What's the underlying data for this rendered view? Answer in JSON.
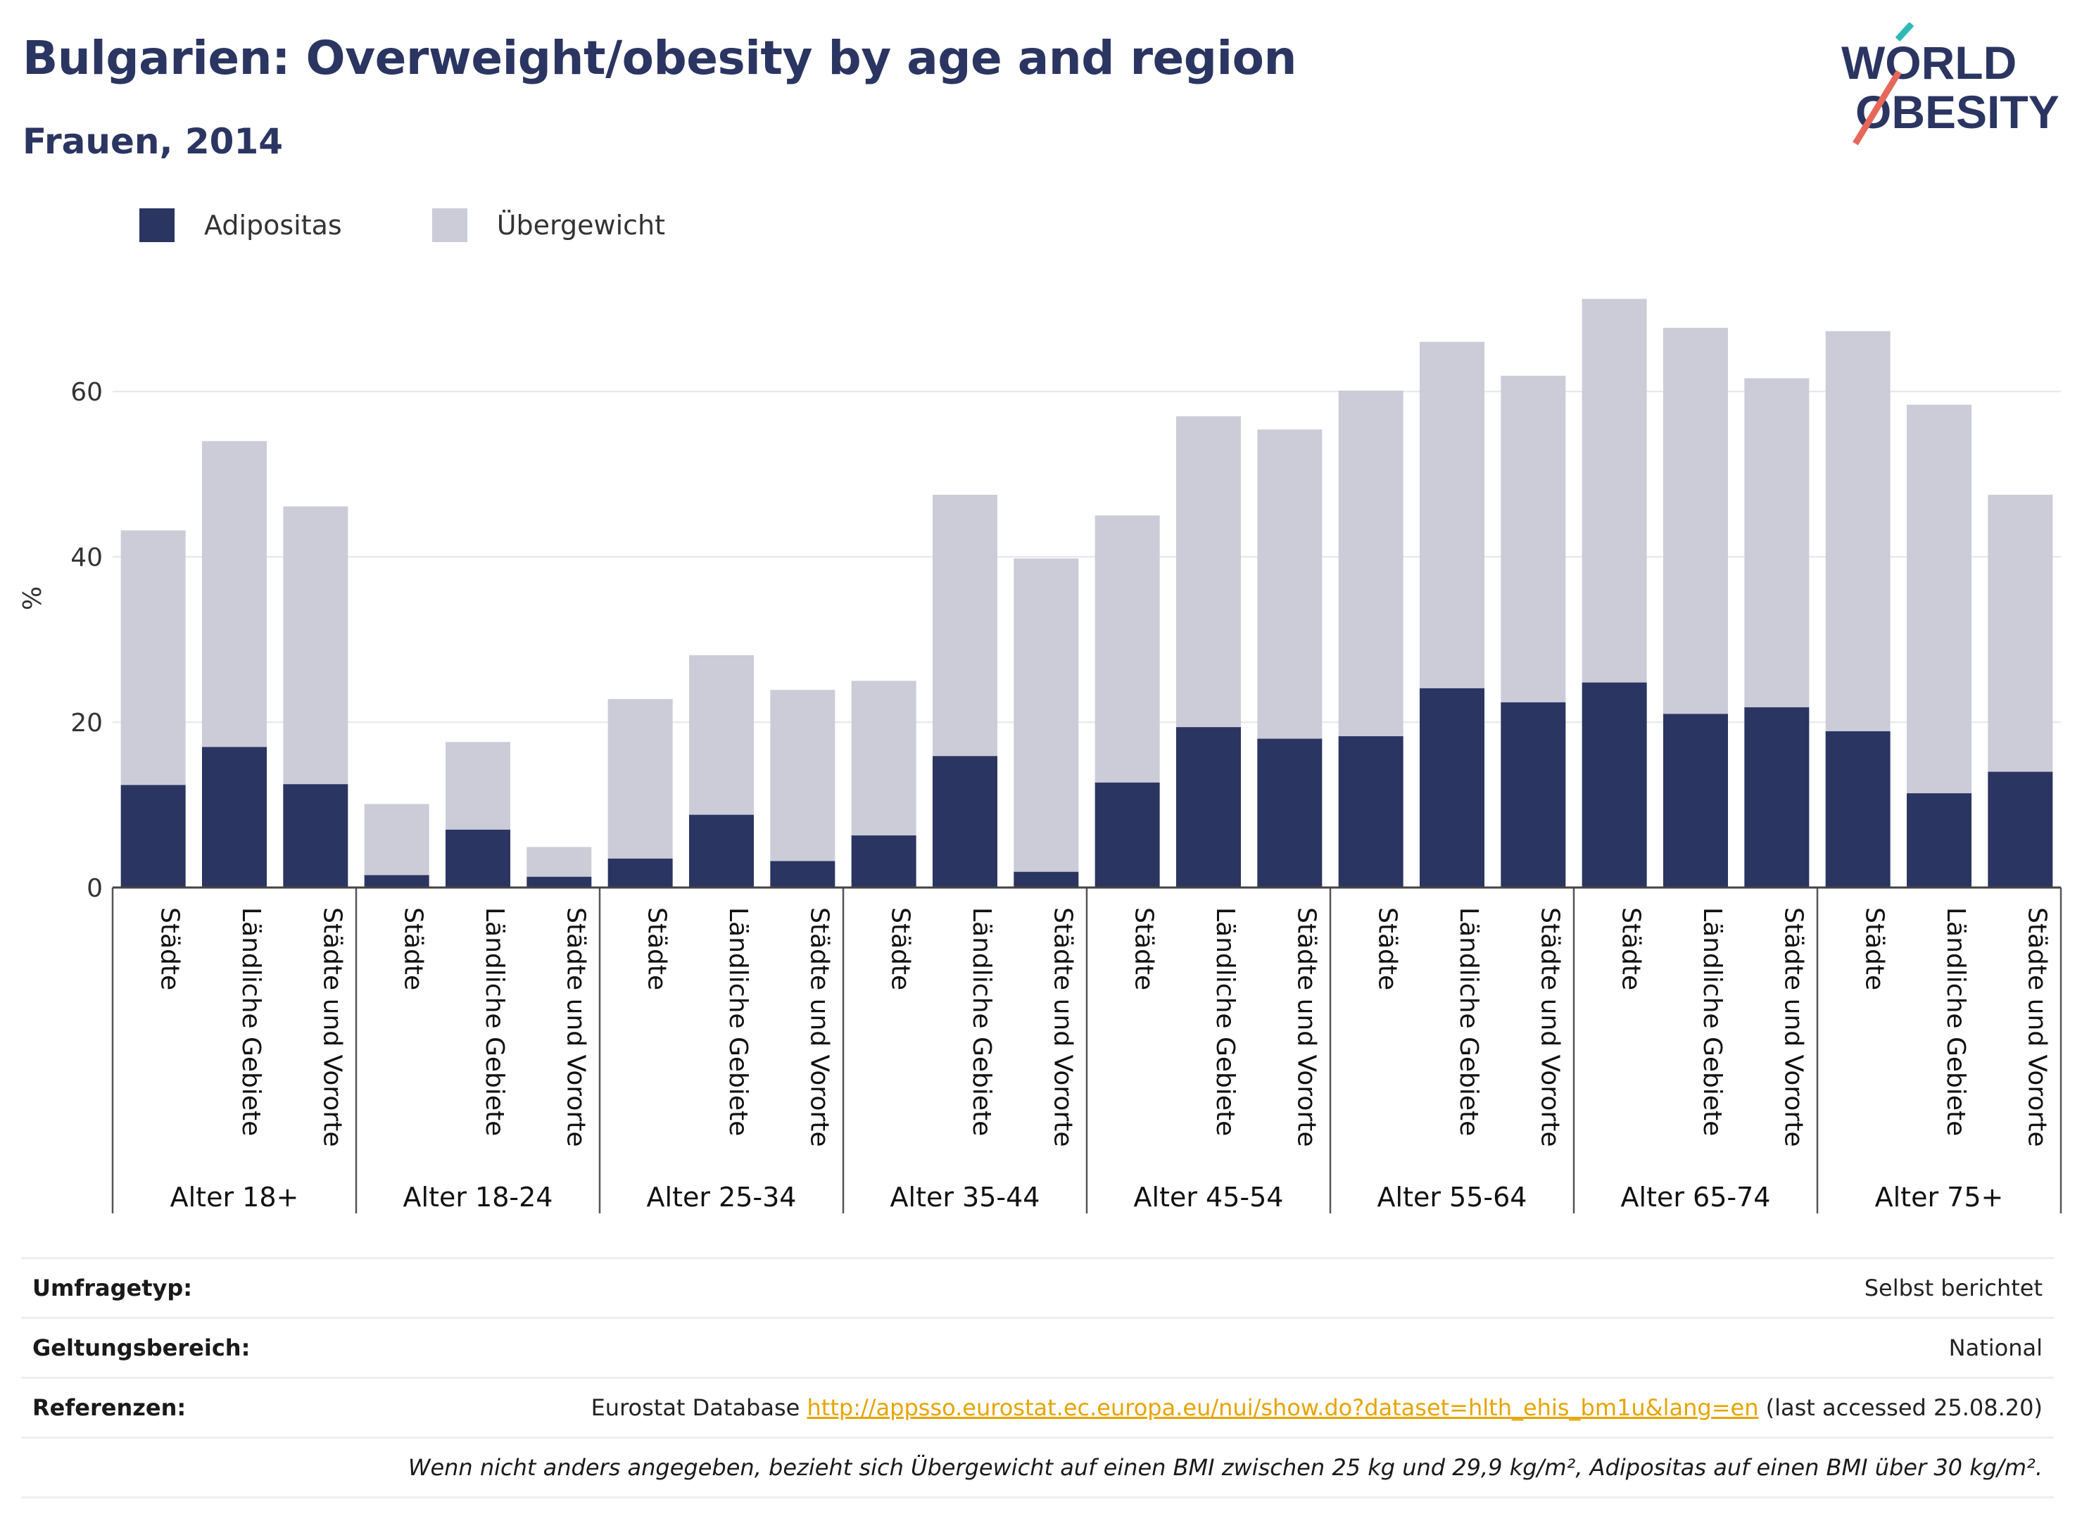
{
  "header": {
    "title": "Bulgarien: Overweight/obesity by age and region",
    "subtitle": "Frauen, 2014"
  },
  "logo": {
    "line1": "WORLD",
    "line2": "OBESITY"
  },
  "legend": [
    {
      "label": "Adipositas",
      "color": "#2a3561"
    },
    {
      "label": "Übergewicht",
      "color": "#cbccd8"
    }
  ],
  "chart_data": {
    "type": "bar",
    "stacked": true,
    "ylabel": "%",
    "ylim": [
      0,
      75
    ],
    "yticks": [
      0,
      20,
      40,
      60
    ],
    "grid": true,
    "groups": [
      {
        "label": "Alter 18+",
        "categories": [
          "Städte",
          "Ländliche Gebiete",
          "Städte und Vororte"
        ],
        "adipositas": [
          12.4,
          17.0,
          12.5
        ],
        "uebergewicht": [
          30.8,
          37.0,
          33.6
        ]
      },
      {
        "label": "Alter 18-24",
        "categories": [
          "Städte",
          "Ländliche Gebiete",
          "Städte und Vororte"
        ],
        "adipositas": [
          1.5,
          7.0,
          1.3
        ],
        "uebergewicht": [
          8.6,
          10.6,
          3.6
        ]
      },
      {
        "label": "Alter 25-34",
        "categories": [
          "Städte",
          "Ländliche Gebiete",
          "Städte und Vororte"
        ],
        "adipositas": [
          3.5,
          8.8,
          3.2
        ],
        "uebergewicht": [
          19.3,
          19.3,
          20.7
        ]
      },
      {
        "label": "Alter 35-44",
        "categories": [
          "Städte",
          "Ländliche Gebiete",
          "Städte und Vororte"
        ],
        "adipositas": [
          6.3,
          15.9,
          1.9
        ],
        "uebergewicht": [
          18.7,
          31.6,
          37.9
        ]
      },
      {
        "label": "Alter 45-54",
        "categories": [
          "Städte",
          "Ländliche Gebiete",
          "Städte und Vororte"
        ],
        "adipositas": [
          12.7,
          19.4,
          18.0
        ],
        "uebergewicht": [
          32.3,
          37.6,
          37.4
        ]
      },
      {
        "label": "Alter 55-64",
        "categories": [
          "Städte",
          "Ländliche Gebiete",
          "Städte und Vororte"
        ],
        "adipositas": [
          18.3,
          24.1,
          22.4
        ],
        "uebergewicht": [
          41.8,
          41.9,
          39.5
        ]
      },
      {
        "label": "Alter 65-74",
        "categories": [
          "Städte",
          "Ländliche Gebiete",
          "Städte und Vororte"
        ],
        "adipositas": [
          24.8,
          21.0,
          21.8
        ],
        "uebergewicht": [
          46.4,
          46.7,
          39.8
        ]
      },
      {
        "label": "Alter 75+",
        "categories": [
          "Städte",
          "Ländliche Gebiete",
          "Städte und Vororte"
        ],
        "adipositas": [
          18.9,
          11.4,
          14.0
        ],
        "uebergewicht": [
          48.4,
          47.0,
          33.5
        ]
      }
    ]
  },
  "meta": {
    "survey_label": "Umfragetyp:",
    "survey_value": "Selbst berichtet",
    "scope_label": "Geltungsbereich:",
    "scope_value": "National",
    "ref_label": "Referenzen:",
    "ref_prefix": "Eurostat Database",
    "ref_link": "http://appsso.eurostat.ec.europa.eu/nui/show.do?dataset=hlth_ehis_bm1u&lang=en",
    "ref_suffix": "(last accessed 25.08.20)",
    "note": "Wenn nicht anders angegeben, bezieht sich Übergewicht auf einen BMI zwischen 25 kg und 29,9 kg/m², Adipositas auf einen BMI über 30 kg/m²."
  }
}
